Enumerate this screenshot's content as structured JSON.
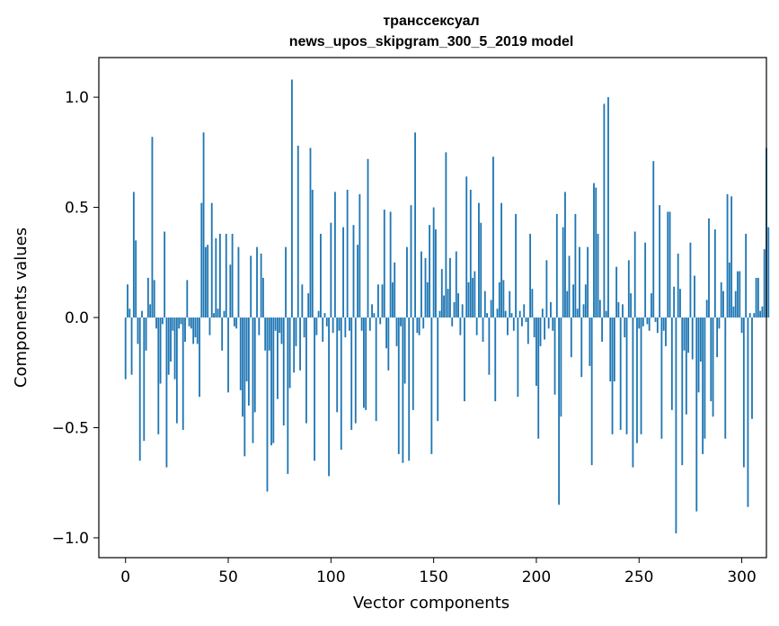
{
  "chart_data": {
    "type": "bar",
    "title": "транссексуал",
    "subtitle": "news_upos_skipgram_300_5_2019 model",
    "xlabel": "Vector components",
    "ylabel": "Components values",
    "xlim": [
      -13,
      312
    ],
    "ylim": [
      -1.09,
      1.18
    ],
    "xticks": [
      0,
      50,
      100,
      150,
      200,
      250,
      300
    ],
    "xtick_labels": [
      "0",
      "50",
      "100",
      "150",
      "200",
      "250",
      "300"
    ],
    "yticks": [
      -1.0,
      -0.5,
      0.0,
      0.5,
      1.0
    ],
    "ytick_labels": [
      "−1.0",
      "−0.5",
      "0.0",
      "0.5",
      "1.0"
    ],
    "bar_color": "#1f77b4",
    "grid": false,
    "values": [
      -0.28,
      0.15,
      0.04,
      -0.26,
      0.57,
      0.35,
      -0.12,
      -0.65,
      0.03,
      -0.56,
      -0.15,
      0.18,
      0.06,
      0.82,
      0.17,
      -0.05,
      -0.53,
      -0.3,
      -0.03,
      0.39,
      -0.68,
      -0.26,
      -0.2,
      -0.06,
      -0.28,
      -0.48,
      -0.05,
      -0.03,
      -0.51,
      -0.11,
      0.17,
      -0.04,
      -0.05,
      -0.12,
      -0.09,
      -0.12,
      -0.36,
      0.52,
      0.84,
      0.32,
      0.33,
      -0.08,
      0.52,
      0.02,
      0.36,
      0.04,
      0.38,
      -0.15,
      0.03,
      0.38,
      -0.34,
      0.24,
      0.38,
      -0.04,
      -0.05,
      0.32,
      -0.33,
      -0.45,
      -0.63,
      -0.29,
      -0.4,
      0.28,
      -0.57,
      -0.43,
      0.32,
      -0.08,
      0.29,
      0.18,
      -0.15,
      -0.79,
      -0.15,
      -0.58,
      -0.57,
      -0.06,
      -0.37,
      -0.07,
      -0.12,
      -0.49,
      0.32,
      -0.71,
      -0.32,
      1.08,
      -0.25,
      -0.13,
      0.78,
      -0.24,
      0.15,
      -0.09,
      -0.48,
      0.11,
      0.77,
      0.58,
      -0.65,
      -0.08,
      0.03,
      0.38,
      -0.11,
      0.02,
      -0.04,
      -0.72,
      0.43,
      -0.07,
      0.57,
      -0.43,
      -0.06,
      -0.6,
      0.41,
      -0.09,
      0.58,
      -0.06,
      -0.51,
      0.42,
      -0.48,
      0.33,
      0.56,
      -0.06,
      -0.41,
      -0.42,
      0.72,
      -0.06,
      0.06,
      0.02,
      -0.47,
      0.15,
      -0.03,
      0.15,
      0.49,
      -0.14,
      -0.24,
      0.48,
      0.16,
      0.25,
      -0.13,
      -0.62,
      -0.04,
      -0.66,
      -0.3,
      0.32,
      -0.65,
      0.51,
      -0.42,
      0.84,
      -0.07,
      -0.08,
      0.3,
      -0.05,
      0.27,
      0.16,
      0.42,
      -0.62,
      0.5,
      0.4,
      -0.47,
      0.03,
      0.22,
      0.1,
      0.75,
      0.13,
      0.27,
      -0.04,
      0.07,
      0.3,
      0.11,
      -0.08,
      0.06,
      -0.38,
      0.64,
      0.16,
      0.58,
      0.18,
      0.21,
      -0.08,
      0.52,
      0.43,
      -0.11,
      0.12,
      0.02,
      -0.26,
      0.08,
      0.73,
      -0.38,
      0.04,
      0.16,
      0.52,
      0.17,
      0.03,
      -0.08,
      0.12,
      0.02,
      -0.06,
      0.47,
      -0.36,
      0.03,
      -0.04,
      0.06,
      -0.02,
      -0.12,
      0.38,
      0.13,
      -0.09,
      -0.31,
      -0.55,
      -0.13,
      0.04,
      -0.1,
      0.26,
      -0.05,
      0.07,
      -0.06,
      -0.35,
      0.47,
      -0.85,
      -0.45,
      0.41,
      0.57,
      0.12,
      0.28,
      -0.18,
      0.15,
      0.47,
      0.04,
      0.32,
      -0.27,
      0.06,
      0.15,
      0.32,
      -0.22,
      -0.67,
      0.61,
      0.59,
      0.38,
      0.08,
      -0.11,
      0.97,
      0.03,
      1.0,
      -0.29,
      -0.53,
      -0.29,
      0.23,
      0.07,
      -0.51,
      0.06,
      -0.09,
      -0.53,
      0.26,
      0.11,
      -0.68,
      0.39,
      -0.57,
      -0.05,
      -0.53,
      -0.04,
      0.34,
      -0.03,
      -0.06,
      0.11,
      0.71,
      -0.02,
      -0.07,
      0.51,
      -0.55,
      -0.06,
      -0.13,
      0.48,
      0.48,
      -0.42,
      0.14,
      -0.98,
      0.29,
      0.13,
      -0.67,
      -0.15,
      -0.44,
      -0.16,
      0.34,
      -0.19,
      0.19,
      -0.88,
      -0.34,
      -0.2,
      -0.62,
      -0.55,
      0.08,
      0.45,
      -0.38,
      -0.45,
      0.4,
      -0.18,
      -0.05,
      0.16,
      0.12,
      -0.55,
      0.56,
      0.25,
      0.55,
      0.05,
      0.12,
      0.21,
      0.21,
      -0.07,
      -0.68,
      0.38,
      -0.86,
      0.02,
      -0.46,
      0.02,
      0.18,
      0.18,
      0.03,
      0.05,
      0.31,
      0.77,
      0.41
    ]
  }
}
